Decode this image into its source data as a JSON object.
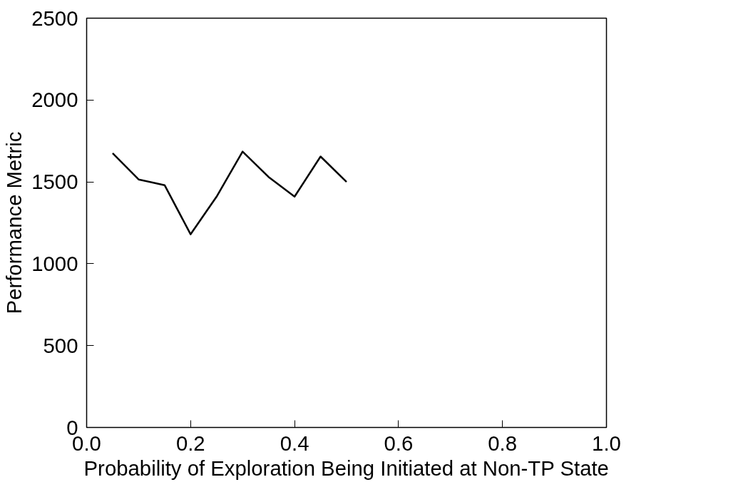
{
  "chart_data": {
    "type": "line",
    "xlabel": "Probability of Exploration Being Initiated at Non-TP State",
    "ylabel": "Performance Metric",
    "x": [
      0.05,
      0.1,
      0.15,
      0.2,
      0.25,
      0.3,
      0.35,
      0.4,
      0.45,
      0.5
    ],
    "series": [
      {
        "color": "#000000",
        "values": [
          1675,
          1515,
          1480,
          1180,
          1410,
          1685,
          1530,
          1410,
          1655,
          1500
        ]
      }
    ],
    "xlim": [
      0,
      1
    ],
    "ylim": [
      0,
      2500
    ],
    "xticks": [
      {
        "value": 0,
        "label": "0.0"
      },
      0.2,
      0.4,
      0.6,
      0.8,
      {
        "value": 1,
        "label": "1.0"
      }
    ],
    "yticks": [
      0,
      500,
      1000,
      1500,
      2000,
      2500
    ],
    "grid": false,
    "marker": "none",
    "line_style": "solid"
  }
}
